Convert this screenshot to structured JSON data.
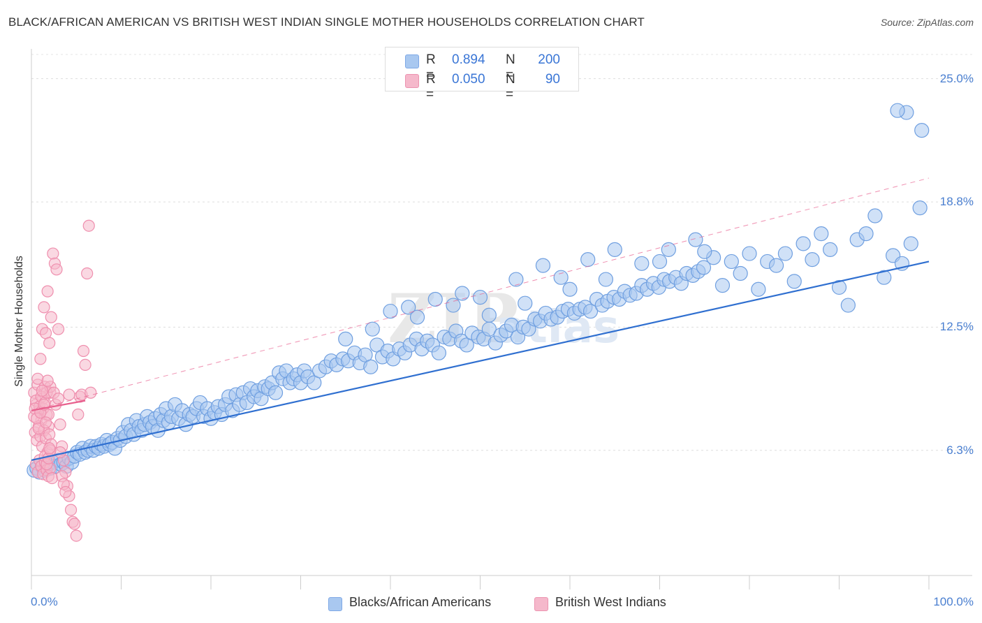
{
  "title": "BLACK/AFRICAN AMERICAN VS BRITISH WEST INDIAN SINGLE MOTHER HOUSEHOLDS CORRELATION CHART",
  "source": "Source: ZipAtlas.com",
  "watermark": {
    "zip": "ZIP",
    "atlas": "atlas"
  },
  "legend": {
    "rows": [
      {
        "r_label": "R =",
        "r_value": "0.894",
        "n_label": "N =",
        "n_value": "200",
        "color": "#a9c8f0"
      },
      {
        "r_label": "R =",
        "r_value": "0.050",
        "n_label": "N =",
        "n_value": "90",
        "color": "#f5b8cb"
      }
    ]
  },
  "bottom_legend": [
    {
      "label": "Blacks/African Americans",
      "color": "#a9c8f0"
    },
    {
      "label": "British West Indians",
      "color": "#f5b8cb"
    }
  ],
  "chart_data": {
    "type": "scatter",
    "xlabel": "",
    "ylabel": "Single Mother Households",
    "xlim": [
      0,
      100
    ],
    "ylim": [
      0,
      26.5
    ],
    "x_tick_labels": [
      "0.0%",
      "100.0%"
    ],
    "y_ticks": [
      {
        "value": 6.3,
        "label": "6.3%"
      },
      {
        "value": 12.5,
        "label": "12.5%"
      },
      {
        "value": 18.8,
        "label": "18.8%"
      },
      {
        "value": 25.0,
        "label": "25.0%"
      }
    ],
    "series": [
      {
        "name": "Blacks/African Americans",
        "color": "#6f9fe0",
        "fill": "#a9c8f0",
        "trend": {
          "x": [
            0,
            100
          ],
          "y": [
            5.8,
            15.8
          ],
          "style": "solid",
          "color": "#2f6fd0"
        },
        "points": [
          [
            0.3,
            5.3
          ],
          [
            0.6,
            5.4
          ],
          [
            0.9,
            5.2
          ],
          [
            1.2,
            5.5
          ],
          [
            1.5,
            5.3
          ],
          [
            1.8,
            5.6
          ],
          [
            2.1,
            5.4
          ],
          [
            2.4,
            5.7
          ],
          [
            2.7,
            5.5
          ],
          [
            3.0,
            5.8
          ],
          [
            3.3,
            5.6
          ],
          [
            3.6,
            5.7
          ],
          [
            3.9,
            5.5
          ],
          [
            4.2,
            5.9
          ],
          [
            4.5,
            5.7
          ],
          [
            4.8,
            6.0
          ],
          [
            5.1,
            6.2
          ],
          [
            5.4,
            6.1
          ],
          [
            5.7,
            6.4
          ],
          [
            6.0,
            6.2
          ],
          [
            6.3,
            6.3
          ],
          [
            6.6,
            6.5
          ],
          [
            6.9,
            6.3
          ],
          [
            7.2,
            6.5
          ],
          [
            7.5,
            6.4
          ],
          [
            7.8,
            6.6
          ],
          [
            8.1,
            6.5
          ],
          [
            8.4,
            6.8
          ],
          [
            8.7,
            6.6
          ],
          [
            9.0,
            6.7
          ],
          [
            9.3,
            6.4
          ],
          [
            9.6,
            6.9
          ],
          [
            9.9,
            6.8
          ],
          [
            10.2,
            7.2
          ],
          [
            10.5,
            7.0
          ],
          [
            10.8,
            7.6
          ],
          [
            11.1,
            7.3
          ],
          [
            11.4,
            7.1
          ],
          [
            11.7,
            7.8
          ],
          [
            12.0,
            7.5
          ],
          [
            12.3,
            7.3
          ],
          [
            12.6,
            7.6
          ],
          [
            12.9,
            8.0
          ],
          [
            13.2,
            7.7
          ],
          [
            13.5,
            7.5
          ],
          [
            13.8,
            7.9
          ],
          [
            14.1,
            7.3
          ],
          [
            14.4,
            8.1
          ],
          [
            14.7,
            7.8
          ],
          [
            15.0,
            8.4
          ],
          [
            15.3,
            7.7
          ],
          [
            15.6,
            8.0
          ],
          [
            16.0,
            8.6
          ],
          [
            16.4,
            7.9
          ],
          [
            16.8,
            8.3
          ],
          [
            17.2,
            7.6
          ],
          [
            17.6,
            8.1
          ],
          [
            18.0,
            8.0
          ],
          [
            18.4,
            8.4
          ],
          [
            18.8,
            8.7
          ],
          [
            19.2,
            8.0
          ],
          [
            19.6,
            8.4
          ],
          [
            20.0,
            7.9
          ],
          [
            20.4,
            8.2
          ],
          [
            20.8,
            8.5
          ],
          [
            21.2,
            8.1
          ],
          [
            21.6,
            8.6
          ],
          [
            22.0,
            9.0
          ],
          [
            22.4,
            8.3
          ],
          [
            22.8,
            9.1
          ],
          [
            23.2,
            8.6
          ],
          [
            23.6,
            9.2
          ],
          [
            24.0,
            8.7
          ],
          [
            24.4,
            9.4
          ],
          [
            24.8,
            9.0
          ],
          [
            25.2,
            9.3
          ],
          [
            25.6,
            8.9
          ],
          [
            26.0,
            9.5
          ],
          [
            26.4,
            9.4
          ],
          [
            26.8,
            9.7
          ],
          [
            27.2,
            9.2
          ],
          [
            27.6,
            10.2
          ],
          [
            28.0,
            9.9
          ],
          [
            28.4,
            10.3
          ],
          [
            28.8,
            9.7
          ],
          [
            29.2,
            9.9
          ],
          [
            29.6,
            10.1
          ],
          [
            30.0,
            9.7
          ],
          [
            30.4,
            10.3
          ],
          [
            30.8,
            10.0
          ],
          [
            31.5,
            9.7
          ],
          [
            32.1,
            10.3
          ],
          [
            32.8,
            10.5
          ],
          [
            33.4,
            10.8
          ],
          [
            34.0,
            10.6
          ],
          [
            34.7,
            10.9
          ],
          [
            35.3,
            10.8
          ],
          [
            36.0,
            11.2
          ],
          [
            36.6,
            10.7
          ],
          [
            37.2,
            11.1
          ],
          [
            37.8,
            10.5
          ],
          [
            38.5,
            11.6
          ],
          [
            39.1,
            11.0
          ],
          [
            39.7,
            11.3
          ],
          [
            40.3,
            10.9
          ],
          [
            41.0,
            11.4
          ],
          [
            41.6,
            11.2
          ],
          [
            42.2,
            11.6
          ],
          [
            42.9,
            11.9
          ],
          [
            43.5,
            11.4
          ],
          [
            44.1,
            11.8
          ],
          [
            44.7,
            11.6
          ],
          [
            45.4,
            11.2
          ],
          [
            46.0,
            12.0
          ],
          [
            46.6,
            11.9
          ],
          [
            47.3,
            12.3
          ],
          [
            47.9,
            11.8
          ],
          [
            48.5,
            11.6
          ],
          [
            49.1,
            12.2
          ],
          [
            49.8,
            12.0
          ],
          [
            50.4,
            11.9
          ],
          [
            51.0,
            12.4
          ],
          [
            51.7,
            11.7
          ],
          [
            52.3,
            12.1
          ],
          [
            52.9,
            12.3
          ],
          [
            53.5,
            12.6
          ],
          [
            54.2,
            12.0
          ],
          [
            54.8,
            12.5
          ],
          [
            55.4,
            12.4
          ],
          [
            56.1,
            12.9
          ],
          [
            56.7,
            12.8
          ],
          [
            57.3,
            13.2
          ],
          [
            57.9,
            12.9
          ],
          [
            58.6,
            13.0
          ],
          [
            59.2,
            13.3
          ],
          [
            59.8,
            13.4
          ],
          [
            60.5,
            13.2
          ],
          [
            61.1,
            13.4
          ],
          [
            61.7,
            13.5
          ],
          [
            62.3,
            13.3
          ],
          [
            63.0,
            13.9
          ],
          [
            63.6,
            13.6
          ],
          [
            64.2,
            13.8
          ],
          [
            64.9,
            14.0
          ],
          [
            65.5,
            13.9
          ],
          [
            66.1,
            14.3
          ],
          [
            66.7,
            14.1
          ],
          [
            67.4,
            14.2
          ],
          [
            68.0,
            14.6
          ],
          [
            68.6,
            14.4
          ],
          [
            69.3,
            14.7
          ],
          [
            69.9,
            14.5
          ],
          [
            70.5,
            14.9
          ],
          [
            71.1,
            14.8
          ],
          [
            71.8,
            15.0
          ],
          [
            72.4,
            14.7
          ],
          [
            73.0,
            15.2
          ],
          [
            73.7,
            15.1
          ],
          [
            74.3,
            15.3
          ],
          [
            74.9,
            15.5
          ],
          [
            40.0,
            13.3
          ],
          [
            42.0,
            13.5
          ],
          [
            45.0,
            13.9
          ],
          [
            48.0,
            14.2
          ],
          [
            50.0,
            14.0
          ],
          [
            54.0,
            14.9
          ],
          [
            57.0,
            15.6
          ],
          [
            59.0,
            15.0
          ],
          [
            62.0,
            15.9
          ],
          [
            65.0,
            16.4
          ],
          [
            68.0,
            15.7
          ],
          [
            71.0,
            16.4
          ],
          [
            74.0,
            16.9
          ],
          [
            76.0,
            16.0
          ],
          [
            78.0,
            15.8
          ],
          [
            80.0,
            16.2
          ],
          [
            82.0,
            15.8
          ],
          [
            84.0,
            16.2
          ],
          [
            86.0,
            16.7
          ],
          [
            88.0,
            17.2
          ],
          [
            35.0,
            11.9
          ],
          [
            38.0,
            12.4
          ],
          [
            43.0,
            13.0
          ],
          [
            47.0,
            13.6
          ],
          [
            51.0,
            13.1
          ],
          [
            55.0,
            13.7
          ],
          [
            60.0,
            14.4
          ],
          [
            64.0,
            14.9
          ],
          [
            70.0,
            15.8
          ],
          [
            75.0,
            16.3
          ],
          [
            77.0,
            14.6
          ],
          [
            79.0,
            15.2
          ],
          [
            81.0,
            14.4
          ],
          [
            83.0,
            15.6
          ],
          [
            85.0,
            14.8
          ],
          [
            87.0,
            15.9
          ],
          [
            89.0,
            16.4
          ],
          [
            90.0,
            14.5
          ],
          [
            91.0,
            13.6
          ],
          [
            92.0,
            16.9
          ],
          [
            93.0,
            17.2
          ],
          [
            94.0,
            18.1
          ],
          [
            95.0,
            15.0
          ],
          [
            96.0,
            16.1
          ],
          [
            97.0,
            15.7
          ],
          [
            98.0,
            16.7
          ],
          [
            99.0,
            18.5
          ],
          [
            97.5,
            23.3
          ],
          [
            96.5,
            23.4
          ],
          [
            99.2,
            22.4
          ]
        ]
      },
      {
        "name": "British West Indians",
        "color": "#ef8fae",
        "fill": "#f5b8cb",
        "trend": {
          "x": [
            0,
            6
          ],
          "y": [
            8.3,
            8.8
          ],
          "style": "solid",
          "color": "#e8608e",
          "extended": {
            "x": [
              0,
              100
            ],
            "y": [
              8.3,
              20.0
            ],
            "style": "dashed"
          }
        },
        "points": [
          [
            0.3,
            9.2
          ],
          [
            0.5,
            8.6
          ],
          [
            0.7,
            9.6
          ],
          [
            0.9,
            8.3
          ],
          [
            1.1,
            7.8
          ],
          [
            1.3,
            8.9
          ],
          [
            1.5,
            9.5
          ],
          [
            1.7,
            8.1
          ],
          [
            1.9,
            7.5
          ],
          [
            2.1,
            9.2
          ],
          [
            0.4,
            7.2
          ],
          [
            0.6,
            6.8
          ],
          [
            0.8,
            7.5
          ],
          [
            1.0,
            7.0
          ],
          [
            1.2,
            6.5
          ],
          [
            1.4,
            7.3
          ],
          [
            1.6,
            6.9
          ],
          [
            1.8,
            6.2
          ],
          [
            2.0,
            7.1
          ],
          [
            2.2,
            6.6
          ],
          [
            0.3,
            8.0
          ],
          [
            0.5,
            8.8
          ],
          [
            0.7,
            9.9
          ],
          [
            0.9,
            8.5
          ],
          [
            1.1,
            9.0
          ],
          [
            1.3,
            8.4
          ],
          [
            1.5,
            8.7
          ],
          [
            1.7,
            9.2
          ],
          [
            1.9,
            8.1
          ],
          [
            2.1,
            9.5
          ],
          [
            0.5,
            5.6
          ],
          [
            0.7,
            5.2
          ],
          [
            0.9,
            5.8
          ],
          [
            1.1,
            5.5
          ],
          [
            1.3,
            5.1
          ],
          [
            1.5,
            5.7
          ],
          [
            1.7,
            5.3
          ],
          [
            1.9,
            5.0
          ],
          [
            2.1,
            5.4
          ],
          [
            2.3,
            4.9
          ],
          [
            1.0,
            10.9
          ],
          [
            1.2,
            12.4
          ],
          [
            1.4,
            13.5
          ],
          [
            1.6,
            12.2
          ],
          [
            1.8,
            14.3
          ],
          [
            2.0,
            11.7
          ],
          [
            2.2,
            13.0
          ],
          [
            2.5,
            9.2
          ],
          [
            2.7,
            8.6
          ],
          [
            3.0,
            8.9
          ],
          [
            3.2,
            7.6
          ],
          [
            3.4,
            6.5
          ],
          [
            3.6,
            5.8
          ],
          [
            3.8,
            5.2
          ],
          [
            4.0,
            4.5
          ],
          [
            4.2,
            4.0
          ],
          [
            4.4,
            3.3
          ],
          [
            4.6,
            2.7
          ],
          [
            4.8,
            2.6
          ],
          [
            5.0,
            2.0
          ],
          [
            5.2,
            8.1
          ],
          [
            5.4,
            9.0
          ],
          [
            5.6,
            9.1
          ],
          [
            5.8,
            11.3
          ],
          [
            6.0,
            10.6
          ],
          [
            6.2,
            15.2
          ],
          [
            6.4,
            17.6
          ],
          [
            6.6,
            9.2
          ],
          [
            2.4,
            16.2
          ],
          [
            2.6,
            15.7
          ],
          [
            2.8,
            15.4
          ],
          [
            3.0,
            12.4
          ],
          [
            3.2,
            6.2
          ],
          [
            3.4,
            5.0
          ],
          [
            3.6,
            4.6
          ],
          [
            3.8,
            4.2
          ],
          [
            1.5,
            6.0
          ],
          [
            1.7,
            5.6
          ],
          [
            1.9,
            5.9
          ],
          [
            2.1,
            6.3
          ],
          [
            0.4,
            8.4
          ],
          [
            0.6,
            7.9
          ],
          [
            0.8,
            7.4
          ],
          [
            1.0,
            8.2
          ],
          [
            1.2,
            9.3
          ],
          [
            1.4,
            8.6
          ],
          [
            1.6,
            7.7
          ],
          [
            1.8,
            9.8
          ],
          [
            2.0,
            6.4
          ],
          [
            4.2,
            9.1
          ]
        ]
      }
    ]
  }
}
